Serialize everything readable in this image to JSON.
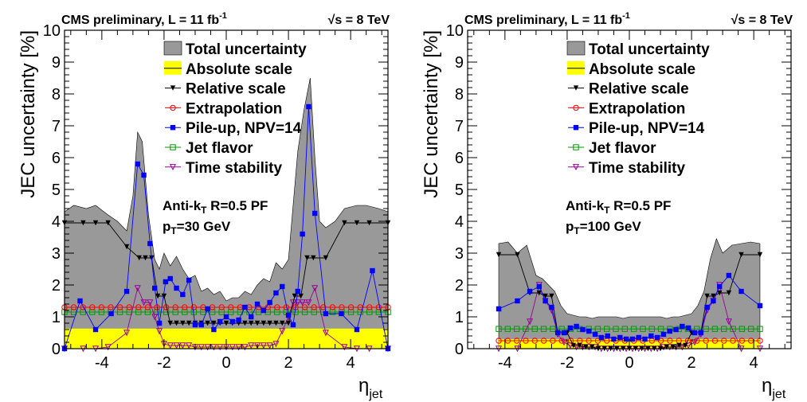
{
  "chart_data": [
    {
      "type": "line",
      "header_left": "CMS preliminary, L = 11 fb",
      "header_left_sup": "-1",
      "header_right": "√s = 8 TeV",
      "ylabel": "JEC uncertainty [%]",
      "xlabel": "η",
      "xlabel_sub": "jet",
      "xlim": [
        -5.2,
        5.2
      ],
      "ylim": [
        0,
        10
      ],
      "xticks": [
        -4,
        -2,
        0,
        2,
        4
      ],
      "yticks": [
        0,
        1,
        2,
        3,
        4,
        5,
        6,
        7,
        8,
        9,
        10
      ],
      "annotation_line1": "Anti-k",
      "annotation_line1_sub": "T",
      "annotation_line1_rest": " R=0.5 PF",
      "annotation_line2": "p",
      "annotation_line2_sub": "T",
      "annotation_line2_rest": "=30 GeV",
      "total": {
        "name": "Total uncertainty",
        "color": "#999999",
        "x": [
          -5.2,
          -4.9,
          -4.5,
          -4.2,
          -3.8,
          -3.5,
          -3.2,
          -3.0,
          -2.85,
          -2.7,
          -2.5,
          -2.3,
          -2.15,
          -2.0,
          -1.8,
          -1.6,
          -1.4,
          -1.2,
          -1.0,
          -0.8,
          -0.6,
          -0.4,
          -0.2,
          0.0,
          0.2,
          0.4,
          0.6,
          0.8,
          1.0,
          1.2,
          1.4,
          1.6,
          1.8,
          2.0,
          2.15,
          2.3,
          2.5,
          2.7,
          2.85,
          3.0,
          3.2,
          3.5,
          3.8,
          4.2,
          4.5,
          4.9,
          5.2
        ],
        "y": [
          4.3,
          4.5,
          4.4,
          4.5,
          4.2,
          4.0,
          3.7,
          4.8,
          6.8,
          6.5,
          4.2,
          2.8,
          2.5,
          3.0,
          2.6,
          2.9,
          2.5,
          2.2,
          2.3,
          1.8,
          1.9,
          1.7,
          1.8,
          1.5,
          1.6,
          1.6,
          1.8,
          1.7,
          2.0,
          2.2,
          2.1,
          2.7,
          2.5,
          2.8,
          4.5,
          6.2,
          7.5,
          8.5,
          6.0,
          4.0,
          3.8,
          4.0,
          4.4,
          4.5,
          4.5,
          4.4,
          4.3
        ]
      },
      "absolute": {
        "name": "Absolute scale",
        "color": "#ffff00",
        "value": 0.63
      },
      "relative": {
        "name": "Relative scale",
        "color": "#000000",
        "x": [
          -5.2,
          -4.6,
          -4.2,
          -3.8,
          -3.2,
          -2.8,
          -2.6,
          -2.4,
          -2.2,
          -2.0,
          -1.8,
          -1.6,
          -1.4,
          -1.2,
          -1.0,
          -0.8,
          -0.6,
          -0.4,
          -0.2,
          0.0,
          0.2,
          0.4,
          0.6,
          0.8,
          1.0,
          1.2,
          1.4,
          1.6,
          1.8,
          2.0,
          2.2,
          2.4,
          2.6,
          2.8,
          3.2,
          3.8,
          4.2,
          4.6,
          5.2
        ],
        "y": [
          3.95,
          3.95,
          3.95,
          3.95,
          3.2,
          2.85,
          2.85,
          2.85,
          1.65,
          1.65,
          0.8,
          0.8,
          0.8,
          0.8,
          0.8,
          0.8,
          0.8,
          0.8,
          0.8,
          0.8,
          0.8,
          0.8,
          0.8,
          0.8,
          0.8,
          0.8,
          0.8,
          0.8,
          0.8,
          0.8,
          1.65,
          1.65,
          2.85,
          2.85,
          2.85,
          3.95,
          3.95,
          3.95,
          3.95
        ]
      },
      "extrapolation": {
        "name": "Extrapolation",
        "color": "#ff0000",
        "value": 1.3,
        "x0": -5.2,
        "x1": 5.2,
        "n": 36
      },
      "pileup": {
        "name": "Pile-up, NPV=14",
        "color": "#0000ff",
        "x": [
          -5.2,
          -4.7,
          -4.2,
          -3.7,
          -3.2,
          -2.85,
          -2.65,
          -2.45,
          -2.3,
          -2.15,
          -1.95,
          -1.8,
          -1.6,
          -1.4,
          -1.2,
          -1.0,
          -0.8,
          -0.6,
          -0.4,
          -0.2,
          0.0,
          0.2,
          0.4,
          0.6,
          0.8,
          1.0,
          1.2,
          1.4,
          1.6,
          1.8,
          2.0,
          2.15,
          2.3,
          2.45,
          2.65,
          2.85,
          3.2,
          3.7,
          4.2,
          4.7,
          5.2
        ],
        "y": [
          0.0,
          1.5,
          0.6,
          1.1,
          1.8,
          5.8,
          5.45,
          3.3,
          1.9,
          0.8,
          2.1,
          2.2,
          1.9,
          1.7,
          2.15,
          0.75,
          0.75,
          1.25,
          0.6,
          0.85,
          1.0,
          0.85,
          0.9,
          1.3,
          1.0,
          1.4,
          1.2,
          1.45,
          1.75,
          1.95,
          1.05,
          0.75,
          1.8,
          3.6,
          7.6,
          4.25,
          1.1,
          1.1,
          0.6,
          2.45,
          0.0
        ]
      },
      "flavor": {
        "name": "Jet flavor",
        "color": "#009900",
        "value": 1.15,
        "x0": -5.2,
        "x1": 5.2,
        "n": 36
      },
      "time": {
        "name": "Time stability",
        "color": "#990099",
        "x": [
          -5.2,
          -4.6,
          -4.2,
          -3.8,
          -3.2,
          -2.85,
          -2.65,
          -2.45,
          -2.3,
          -2.15,
          -2.0,
          -1.8,
          -1.6,
          -1.4,
          -1.2,
          -1.0,
          -0.8,
          -0.6,
          -0.4,
          -0.2,
          0.0,
          0.2,
          0.4,
          0.6,
          0.8,
          1.0,
          1.2,
          1.4,
          1.6,
          1.8,
          2.0,
          2.15,
          2.3,
          2.45,
          2.65,
          2.85,
          3.2,
          3.8,
          4.2,
          4.6,
          5.2
        ],
        "y": [
          0.0,
          0.0,
          0.0,
          0.05,
          0.5,
          1.9,
          1.45,
          1.45,
          1.0,
          0.55,
          0.15,
          0.1,
          0.1,
          0.1,
          0.1,
          0.05,
          0.05,
          0.05,
          0.05,
          0.05,
          0.05,
          0.05,
          0.05,
          0.05,
          0.1,
          0.1,
          0.1,
          0.1,
          0.15,
          0.55,
          1.0,
          1.45,
          1.45,
          1.45,
          1.45,
          1.9,
          0.5,
          0.05,
          0.0,
          0.0,
          0.0
        ]
      }
    },
    {
      "type": "line",
      "header_left": "CMS preliminary, L = 11 fb",
      "header_left_sup": "-1",
      "header_right": "√s = 8 TeV",
      "ylabel": "JEC uncertainty [%]",
      "xlabel": "η",
      "xlabel_sub": "jet",
      "xlim": [
        -5.2,
        5.2
      ],
      "ylim": [
        0,
        10
      ],
      "xticks": [
        -4,
        -2,
        0,
        2,
        4
      ],
      "yticks": [
        0,
        1,
        2,
        3,
        4,
        5,
        6,
        7,
        8,
        9,
        10
      ],
      "annotation_line1": "Anti-k",
      "annotation_line1_sub": "T",
      "annotation_line1_rest": " R=0.5 PF",
      "annotation_line2": "p",
      "annotation_line2_sub": "T",
      "annotation_line2_rest": "=100 GeV",
      "total": {
        "name": "Total uncertainty",
        "color": "#999999",
        "x": [
          -4.2,
          -3.9,
          -3.6,
          -3.3,
          -3.0,
          -2.8,
          -2.6,
          -2.4,
          -2.2,
          -2.0,
          -1.8,
          -1.6,
          -1.4,
          -1.2,
          -1.0,
          -0.8,
          -0.6,
          -0.4,
          -0.2,
          0.0,
          0.2,
          0.4,
          0.6,
          0.8,
          1.0,
          1.2,
          1.4,
          1.6,
          1.8,
          2.0,
          2.2,
          2.4,
          2.6,
          2.8,
          3.0,
          3.3,
          3.6,
          3.9,
          4.2
        ],
        "y": [
          3.3,
          3.35,
          3.0,
          3.25,
          2.3,
          2.2,
          2.0,
          1.8,
          1.35,
          1.1,
          1.05,
          1.0,
          1.0,
          0.95,
          1.0,
          1.0,
          1.0,
          1.0,
          0.95,
          1.0,
          1.0,
          1.0,
          1.0,
          1.0,
          1.0,
          0.95,
          1.0,
          1.0,
          1.05,
          1.1,
          1.35,
          1.8,
          2.8,
          3.45,
          3.0,
          3.25,
          3.3,
          3.35,
          3.3
        ]
      },
      "absolute": {
        "name": "Absolute scale",
        "color": "#ffff00",
        "value": 0.3,
        "x0": -4.2,
        "x1": 4.2
      },
      "relative": {
        "name": "Relative scale",
        "color": "#000000",
        "x": [
          -4.2,
          -3.6,
          -3.2,
          -2.9,
          -2.7,
          -2.5,
          -2.3,
          -2.0,
          -1.8,
          -1.6,
          -1.4,
          -1.2,
          -1.0,
          -0.8,
          -0.6,
          -0.4,
          -0.2,
          0.0,
          0.2,
          0.4,
          0.6,
          0.8,
          1.0,
          1.2,
          1.4,
          1.6,
          1.8,
          2.0,
          2.3,
          2.5,
          2.7,
          2.9,
          3.2,
          3.6,
          4.2
        ],
        "y": [
          2.95,
          2.95,
          1.75,
          1.75,
          1.65,
          1.65,
          0.5,
          0.5,
          0.1,
          0.1,
          0.05,
          0.05,
          0.0,
          0.0,
          0.0,
          0.0,
          0.0,
          0.0,
          0.0,
          0.0,
          0.0,
          0.0,
          0.0,
          0.05,
          0.05,
          0.1,
          0.1,
          0.5,
          0.5,
          1.65,
          1.65,
          1.75,
          1.75,
          2.95,
          2.95
        ]
      },
      "extrapolation": {
        "name": "Extrapolation",
        "color": "#ff0000",
        "value": 0.25,
        "x0": -4.2,
        "x1": 4.2,
        "n": 30
      },
      "pileup": {
        "name": "Pile-up, NPV=14",
        "color": "#0000ff",
        "x": [
          -4.2,
          -3.6,
          -3.2,
          -2.9,
          -2.7,
          -2.5,
          -2.3,
          -2.1,
          -1.9,
          -1.7,
          -1.5,
          -1.3,
          -1.1,
          -0.9,
          -0.7,
          -0.5,
          -0.3,
          -0.1,
          0.1,
          0.3,
          0.5,
          0.7,
          0.9,
          1.1,
          1.3,
          1.5,
          1.7,
          1.9,
          2.1,
          2.3,
          2.5,
          2.7,
          2.9,
          3.2,
          3.6,
          4.2
        ],
        "y": [
          1.25,
          1.5,
          1.8,
          1.95,
          1.5,
          1.3,
          0.5,
          0.5,
          0.65,
          0.7,
          0.6,
          0.55,
          0.45,
          0.35,
          0.4,
          0.3,
          0.35,
          0.3,
          0.3,
          0.35,
          0.3,
          0.4,
          0.35,
          0.45,
          0.55,
          0.6,
          0.7,
          0.65,
          0.5,
          0.5,
          1.3,
          1.5,
          1.95,
          2.3,
          1.8,
          1.35
        ]
      },
      "flavor": {
        "name": "Jet flavor",
        "color": "#009900",
        "value": 0.62,
        "x0": -4.2,
        "x1": 4.2,
        "n": 30
      },
      "time": {
        "name": "Time stability",
        "color": "#990099",
        "x": [
          -4.2,
          -3.6,
          -3.2,
          -2.9,
          -2.7,
          -2.5,
          -2.3,
          -2.1,
          -1.9,
          -1.7,
          -1.5,
          -1.3,
          -1.1,
          -0.9,
          -0.7,
          -0.5,
          -0.3,
          -0.1,
          0.1,
          0.3,
          0.5,
          0.7,
          0.9,
          1.1,
          1.3,
          1.5,
          1.7,
          1.9,
          2.1,
          2.3,
          2.5,
          2.7,
          2.9,
          3.2,
          3.6,
          4.2
        ],
        "y": [
          0.0,
          0.0,
          0.85,
          2.0,
          1.5,
          1.2,
          0.45,
          0.2,
          0.1,
          0.05,
          0.05,
          0.05,
          0.05,
          0.0,
          0.0,
          0.0,
          0.0,
          0.0,
          0.0,
          0.0,
          0.0,
          0.0,
          0.0,
          0.05,
          0.05,
          0.05,
          0.05,
          0.1,
          0.2,
          0.45,
          1.2,
          1.5,
          2.0,
          0.85,
          0.0,
          0.0
        ]
      }
    }
  ]
}
